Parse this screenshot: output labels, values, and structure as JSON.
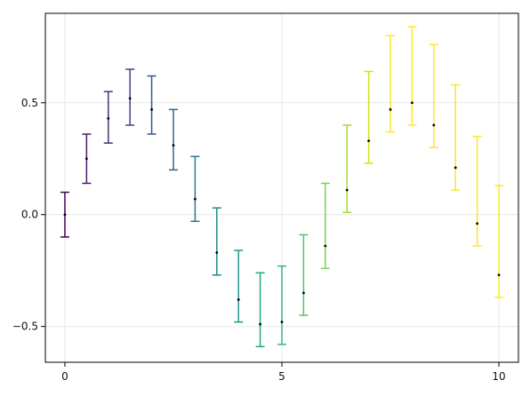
{
  "chart_data": {
    "type": "scatter",
    "style": "errorbars",
    "title": "",
    "xlabel": "",
    "ylabel": "",
    "xlim": [
      -0.45,
      10.45
    ],
    "ylim": [
      -0.66,
      0.9
    ],
    "xticks": [
      0,
      5,
      10
    ],
    "yticks": [
      -0.5,
      0.0,
      0.5
    ],
    "xtick_labels": [
      "0",
      "5",
      "10"
    ],
    "ytick_labels": [
      "−0.5",
      "0.0",
      "0.5"
    ],
    "grid": true,
    "colormap": "viridis",
    "x": [
      0,
      0.5,
      1,
      1.5,
      2,
      2.5,
      3,
      3.5,
      4,
      4.5,
      5,
      5.5,
      6,
      6.5,
      7,
      7.5,
      8,
      8.5,
      9,
      9.5,
      10
    ],
    "y": [
      0.0,
      0.25,
      0.43,
      0.52,
      0.47,
      0.31,
      0.07,
      -0.17,
      -0.38,
      -0.49,
      -0.48,
      -0.35,
      -0.14,
      0.11,
      0.33,
      0.47,
      0.5,
      0.4,
      0.21,
      -0.04,
      -0.27
    ],
    "yerr_low": [
      -0.1,
      0.14,
      0.32,
      0.4,
      0.36,
      0.2,
      -0.03,
      -0.27,
      -0.48,
      -0.59,
      -0.58,
      -0.45,
      -0.24,
      0.01,
      0.23,
      0.37,
      0.4,
      0.3,
      0.11,
      -0.14,
      -0.37
    ],
    "yerr_high": [
      0.1,
      0.36,
      0.55,
      0.65,
      0.62,
      0.47,
      0.26,
      0.03,
      -0.16,
      -0.26,
      -0.23,
      -0.09,
      0.14,
      0.4,
      0.64,
      0.8,
      0.84,
      0.76,
      0.58,
      0.35,
      0.13
    ],
    "colors": [
      "#440154",
      "#481a6c",
      "#472f7d",
      "#414487",
      "#39568c",
      "#31688e",
      "#2a788e",
      "#23888e",
      "#1f988b",
      "#22a884",
      "#35b779",
      "#54c568",
      "#7ad151",
      "#a5db36",
      "#d2e21b",
      "#fde725",
      "#fde725",
      "#fde725",
      "#fde725",
      "#fde725",
      "#fde725"
    ],
    "point_color": "#000000"
  }
}
